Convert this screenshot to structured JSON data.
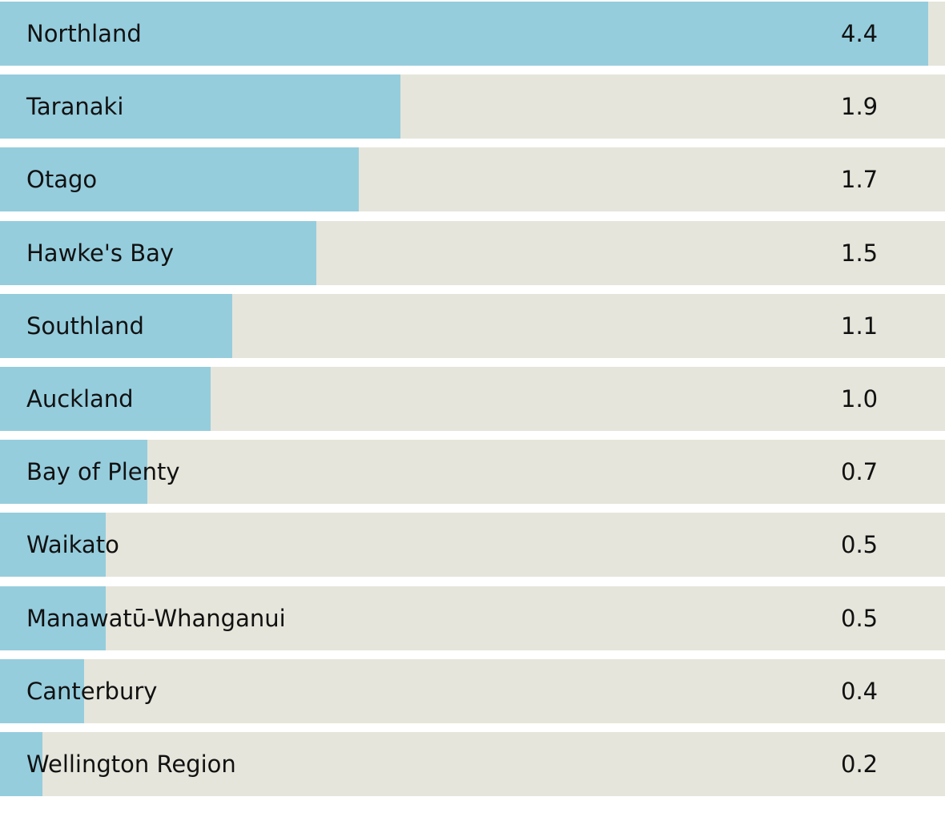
{
  "chart_data": {
    "type": "bar",
    "orientation": "horizontal",
    "categories": [
      "Northland",
      "Taranaki",
      "Otago",
      "Hawke's Bay",
      "Southland",
      "Auckland",
      "Bay of Plenty",
      "Waikato",
      "Manawatū-Whanganui",
      "Canterbury",
      "Wellington Region"
    ],
    "values": [
      4.4,
      1.9,
      1.7,
      1.5,
      1.1,
      1.0,
      0.7,
      0.5,
      0.5,
      0.4,
      0.2
    ],
    "value_labels": [
      "4.4",
      "1.9",
      "1.7",
      "1.5",
      "1.1",
      "1.0",
      "0.7",
      "0.5",
      "0.5",
      "0.4",
      "0.2"
    ],
    "xlim": [
      0,
      4.48
    ],
    "grid": false,
    "legend": "none",
    "colors": {
      "bar": "#95cddd",
      "track": "#e5e5db",
      "text": "#111111"
    }
  }
}
